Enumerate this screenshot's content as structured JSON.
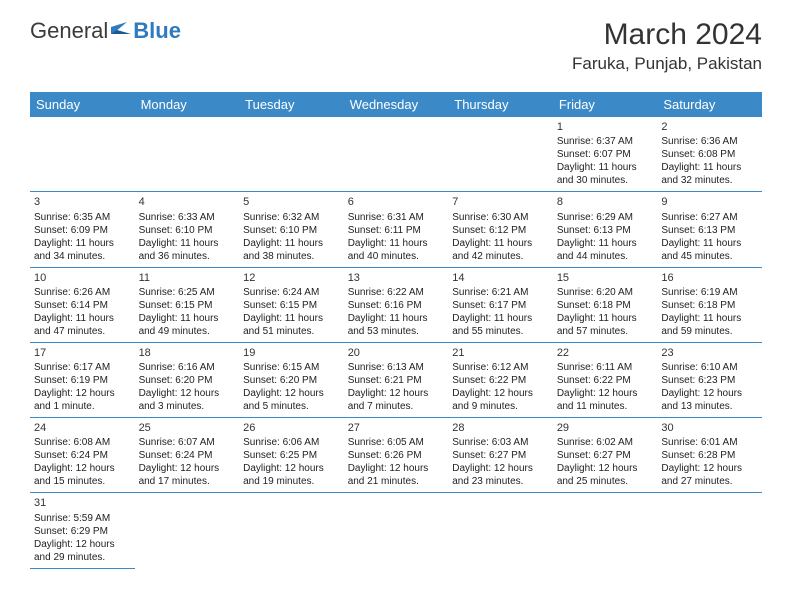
{
  "logo": {
    "text1": "General",
    "text2": "Blue"
  },
  "title": "March 2024",
  "location": "Faruka, Punjab, Pakistan",
  "colors": {
    "header_bg": "#3b89c7",
    "header_text": "#ffffff",
    "row_border": "#3b89c7",
    "shaded_bg": "#eceded",
    "text": "#222222",
    "logo_gray": "#3b3b3b",
    "logo_blue": "#2f7bbf"
  },
  "weekdays": [
    "Sunday",
    "Monday",
    "Tuesday",
    "Wednesday",
    "Thursday",
    "Friday",
    "Saturday"
  ],
  "weeks": [
    [
      null,
      null,
      null,
      null,
      null,
      {
        "n": "1",
        "sr": "6:37 AM",
        "ss": "6:07 PM",
        "dl1": "11 hours",
        "dl2": "and 30 minutes."
      },
      {
        "n": "2",
        "sr": "6:36 AM",
        "ss": "6:08 PM",
        "dl1": "11 hours",
        "dl2": "and 32 minutes."
      }
    ],
    [
      {
        "n": "3",
        "sr": "6:35 AM",
        "ss": "6:09 PM",
        "dl1": "11 hours",
        "dl2": "and 34 minutes."
      },
      {
        "n": "4",
        "sr": "6:33 AM",
        "ss": "6:10 PM",
        "dl1": "11 hours",
        "dl2": "and 36 minutes."
      },
      {
        "n": "5",
        "sr": "6:32 AM",
        "ss": "6:10 PM",
        "dl1": "11 hours",
        "dl2": "and 38 minutes."
      },
      {
        "n": "6",
        "sr": "6:31 AM",
        "ss": "6:11 PM",
        "dl1": "11 hours",
        "dl2": "and 40 minutes."
      },
      {
        "n": "7",
        "sr": "6:30 AM",
        "ss": "6:12 PM",
        "dl1": "11 hours",
        "dl2": "and 42 minutes."
      },
      {
        "n": "8",
        "sr": "6:29 AM",
        "ss": "6:13 PM",
        "dl1": "11 hours",
        "dl2": "and 44 minutes."
      },
      {
        "n": "9",
        "sr": "6:27 AM",
        "ss": "6:13 PM",
        "dl1": "11 hours",
        "dl2": "and 45 minutes."
      }
    ],
    [
      {
        "n": "10",
        "sr": "6:26 AM",
        "ss": "6:14 PM",
        "dl1": "11 hours",
        "dl2": "and 47 minutes."
      },
      {
        "n": "11",
        "sr": "6:25 AM",
        "ss": "6:15 PM",
        "dl1": "11 hours",
        "dl2": "and 49 minutes."
      },
      {
        "n": "12",
        "sr": "6:24 AM",
        "ss": "6:15 PM",
        "dl1": "11 hours",
        "dl2": "and 51 minutes."
      },
      {
        "n": "13",
        "sr": "6:22 AM",
        "ss": "6:16 PM",
        "dl1": "11 hours",
        "dl2": "and 53 minutes."
      },
      {
        "n": "14",
        "sr": "6:21 AM",
        "ss": "6:17 PM",
        "dl1": "11 hours",
        "dl2": "and 55 minutes."
      },
      {
        "n": "15",
        "sr": "6:20 AM",
        "ss": "6:18 PM",
        "dl1": "11 hours",
        "dl2": "and 57 minutes."
      },
      {
        "n": "16",
        "sr": "6:19 AM",
        "ss": "6:18 PM",
        "dl1": "11 hours",
        "dl2": "and 59 minutes."
      }
    ],
    [
      {
        "n": "17",
        "sr": "6:17 AM",
        "ss": "6:19 PM",
        "dl1": "12 hours",
        "dl2": "and 1 minute."
      },
      {
        "n": "18",
        "sr": "6:16 AM",
        "ss": "6:20 PM",
        "dl1": "12 hours",
        "dl2": "and 3 minutes."
      },
      {
        "n": "19",
        "sr": "6:15 AM",
        "ss": "6:20 PM",
        "dl1": "12 hours",
        "dl2": "and 5 minutes."
      },
      {
        "n": "20",
        "sr": "6:13 AM",
        "ss": "6:21 PM",
        "dl1": "12 hours",
        "dl2": "and 7 minutes."
      },
      {
        "n": "21",
        "sr": "6:12 AM",
        "ss": "6:22 PM",
        "dl1": "12 hours",
        "dl2": "and 9 minutes."
      },
      {
        "n": "22",
        "sr": "6:11 AM",
        "ss": "6:22 PM",
        "dl1": "12 hours",
        "dl2": "and 11 minutes."
      },
      {
        "n": "23",
        "sr": "6:10 AM",
        "ss": "6:23 PM",
        "dl1": "12 hours",
        "dl2": "and 13 minutes."
      }
    ],
    [
      {
        "n": "24",
        "sr": "6:08 AM",
        "ss": "6:24 PM",
        "dl1": "12 hours",
        "dl2": "and 15 minutes."
      },
      {
        "n": "25",
        "sr": "6:07 AM",
        "ss": "6:24 PM",
        "dl1": "12 hours",
        "dl2": "and 17 minutes."
      },
      {
        "n": "26",
        "sr": "6:06 AM",
        "ss": "6:25 PM",
        "dl1": "12 hours",
        "dl2": "and 19 minutes."
      },
      {
        "n": "27",
        "sr": "6:05 AM",
        "ss": "6:26 PM",
        "dl1": "12 hours",
        "dl2": "and 21 minutes."
      },
      {
        "n": "28",
        "sr": "6:03 AM",
        "ss": "6:27 PM",
        "dl1": "12 hours",
        "dl2": "and 23 minutes."
      },
      {
        "n": "29",
        "sr": "6:02 AM",
        "ss": "6:27 PM",
        "dl1": "12 hours",
        "dl2": "and 25 minutes."
      },
      {
        "n": "30",
        "sr": "6:01 AM",
        "ss": "6:28 PM",
        "dl1": "12 hours",
        "dl2": "and 27 minutes."
      }
    ],
    [
      {
        "n": "31",
        "sr": "5:59 AM",
        "ss": "6:29 PM",
        "dl1": "12 hours",
        "dl2": "and 29 minutes."
      },
      null,
      null,
      null,
      null,
      null,
      null
    ]
  ],
  "labels": {
    "sunrise": "Sunrise:",
    "sunset": "Sunset:",
    "daylight": "Daylight:"
  }
}
